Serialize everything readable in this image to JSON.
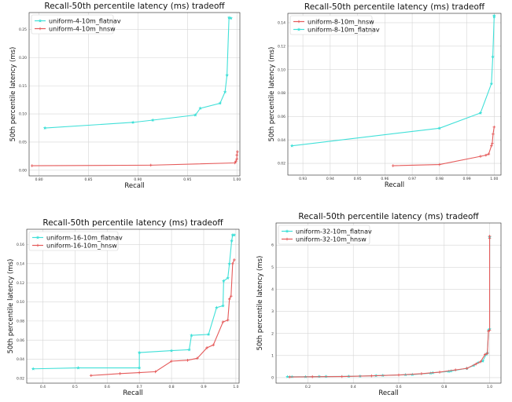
{
  "chart_data": [
    {
      "type": "line",
      "title": "Recall-50th percentile latency (ms) tradeoff",
      "xlabel": "Recall",
      "ylabel": "50th percentile latency (ms)",
      "xlim": [
        0.79,
        1.003
      ],
      "ylim": [
        -0.01,
        0.28
      ],
      "xticks": [
        0.8,
        0.85,
        0.9,
        0.95,
        1.0
      ],
      "xtick_labels": [
        "0.80",
        "0.85",
        "0.90",
        "0.95",
        "1.00"
      ],
      "yticks": [
        0.0,
        0.05,
        0.1,
        0.15,
        0.2,
        0.25
      ],
      "ytick_labels": [
        "0.00",
        "0.05",
        "0.10",
        "0.15",
        "0.20",
        "0.25"
      ],
      "grid": true,
      "legend": "top-left",
      "series": [
        {
          "name": "uniform-4-10m_flatnav",
          "color": "#40e0d8",
          "marker": "star",
          "x": [
            0.806,
            0.895,
            0.915,
            0.958,
            0.963,
            0.983,
            0.988,
            0.99,
            0.992,
            0.994
          ],
          "y": [
            0.075,
            0.085,
            0.089,
            0.098,
            0.11,
            0.119,
            0.139,
            0.169,
            0.271,
            0.27
          ]
        },
        {
          "name": "uniform-4-10m_hnsw",
          "color": "#e55a5a",
          "marker": "plus",
          "x": [
            0.793,
            0.913,
            0.998,
            0.999,
            1.0,
            1.0,
            1.0005
          ],
          "y": [
            0.008,
            0.009,
            0.013,
            0.016,
            0.02,
            0.027,
            0.033
          ]
        }
      ]
    },
    {
      "type": "line",
      "title": "Recall-50th percentile latency (ms) tradeoff",
      "xlabel": "Recall",
      "ylabel": "50th percentile latency (ms)",
      "xlim": [
        0.9245,
        1.0025
      ],
      "ylim": [
        0.01,
        0.148
      ],
      "xticks": [
        0.93,
        0.94,
        0.95,
        0.96,
        0.97,
        0.98,
        0.99,
        1.0
      ],
      "xtick_labels": [
        "0.93",
        "0.94",
        "0.95",
        "0.96",
        "0.97",
        "0.98",
        "0.99",
        "1.00"
      ],
      "yticks": [
        0.02,
        0.04,
        0.06,
        0.08,
        0.1,
        0.12,
        0.14
      ],
      "ytick_labels": [
        "0.02",
        "0.04",
        "0.06",
        "0.08",
        "0.10",
        "0.12",
        "0.14"
      ],
      "grid": true,
      "legend": "top-left",
      "series": [
        {
          "name": "uniform-8-10m_hnsw",
          "color": "#e55a5a",
          "marker": "plus",
          "x": [
            0.963,
            0.98,
            0.995,
            0.997,
            0.998,
            0.999,
            0.9993,
            0.9996,
            1.0
          ],
          "y": [
            0.018,
            0.019,
            0.026,
            0.027,
            0.028,
            0.035,
            0.037,
            0.045,
            0.051
          ]
        },
        {
          "name": "uniform-8-10m_flatnav",
          "color": "#40e0d8",
          "marker": "star",
          "x": [
            0.926,
            0.98,
            0.995,
            0.999,
            0.9995,
            1.0,
            1.0
          ],
          "y": [
            0.035,
            0.05,
            0.063,
            0.088,
            0.111,
            0.145,
            0.146
          ]
        }
      ]
    },
    {
      "type": "line",
      "title": "Recall-50th percentile latency (ms) tradeoff",
      "xlabel": "Recall",
      "ylabel": "50th percentile latency (ms)",
      "xlim": [
        0.35,
        1.01
      ],
      "ylim": [
        0.015,
        0.176
      ],
      "xticks": [
        0.4,
        0.5,
        0.6,
        0.7,
        0.8,
        0.9,
        1.0
      ],
      "xtick_labels": [
        "0.4",
        "0.5",
        "0.6",
        "0.7",
        "0.8",
        "0.9",
        "1.0"
      ],
      "yticks": [
        0.02,
        0.04,
        0.06,
        0.08,
        0.1,
        0.12,
        0.14,
        0.16
      ],
      "ytick_labels": [
        "0.02",
        "0.04",
        "0.06",
        "0.08",
        "0.10",
        "0.12",
        "0.14",
        "0.16"
      ],
      "grid": true,
      "legend": "top-left",
      "series": [
        {
          "name": "uniform-16-10m_flatnav",
          "color": "#40e0d8",
          "marker": "star",
          "x": [
            0.37,
            0.51,
            0.7,
            0.7,
            0.8,
            0.855,
            0.862,
            0.915,
            0.94,
            0.96,
            0.962,
            0.975,
            0.98,
            0.987,
            0.99,
            0.995
          ],
          "y": [
            0.03,
            0.031,
            0.031,
            0.047,
            0.049,
            0.05,
            0.065,
            0.066,
            0.094,
            0.096,
            0.122,
            0.125,
            0.14,
            0.164,
            0.17,
            0.17
          ]
        },
        {
          "name": "uniform-16-10m_hnsw",
          "color": "#e55a5a",
          "marker": "plus",
          "x": [
            0.55,
            0.64,
            0.7,
            0.75,
            0.8,
            0.85,
            0.88,
            0.91,
            0.93,
            0.96,
            0.975,
            0.98,
            0.985,
            0.99,
            0.995
          ],
          "y": [
            0.023,
            0.025,
            0.026,
            0.027,
            0.038,
            0.039,
            0.041,
            0.052,
            0.055,
            0.079,
            0.081,
            0.103,
            0.106,
            0.14,
            0.144
          ]
        }
      ]
    },
    {
      "type": "line",
      "title": "Recall-50th percentile latency (ms) tradeoff",
      "xlabel": "Recall",
      "ylabel": "50th percentile latency (ms)",
      "xlim": [
        0.06,
        1.05
      ],
      "ylim": [
        -0.25,
        7.0
      ],
      "xticks": [
        0.2,
        0.4,
        0.6,
        0.8,
        1.0
      ],
      "xtick_labels": [
        "0.2",
        "0.4",
        "0.6",
        "0.8",
        "1.0"
      ],
      "yticks": [
        0,
        1,
        2,
        3,
        4,
        5,
        6
      ],
      "ytick_labels": [
        "0",
        "1",
        "2",
        "3",
        "4",
        "5",
        "6"
      ],
      "grid": true,
      "legend": "top-left",
      "series": [
        {
          "name": "uniform-32-10m_flatnav",
          "color": "#40e0d8",
          "marker": "star",
          "x": [
            0.11,
            0.13,
            0.19,
            0.25,
            0.28,
            0.38,
            0.43,
            0.5,
            0.53,
            0.63,
            0.66,
            0.74,
            0.75,
            0.82,
            0.83,
            0.9,
            0.93,
            0.95,
            0.97,
            0.985,
            0.99,
            0.995,
            1.0,
            1.0
          ],
          "y": [
            0.04,
            0.04,
            0.04,
            0.05,
            0.05,
            0.06,
            0.07,
            0.09,
            0.1,
            0.13,
            0.14,
            0.2,
            0.22,
            0.28,
            0.3,
            0.42,
            0.55,
            0.68,
            0.75,
            1.05,
            1.12,
            2.15,
            2.2,
            6.35
          ]
        },
        {
          "name": "uniform-32-10m_hnsw",
          "color": "#e55a5a",
          "marker": "plus",
          "x": [
            0.12,
            0.22,
            0.35,
            0.48,
            0.6,
            0.7,
            0.78,
            0.85,
            0.9,
            0.94,
            0.96,
            0.98,
            0.99,
            0.995,
            1.0,
            1.0,
            1.0
          ],
          "y": [
            0.03,
            0.04,
            0.05,
            0.08,
            0.12,
            0.18,
            0.25,
            0.35,
            0.42,
            0.62,
            0.72,
            1.05,
            1.1,
            2.1,
            2.15,
            6.3,
            6.4
          ]
        }
      ]
    }
  ]
}
